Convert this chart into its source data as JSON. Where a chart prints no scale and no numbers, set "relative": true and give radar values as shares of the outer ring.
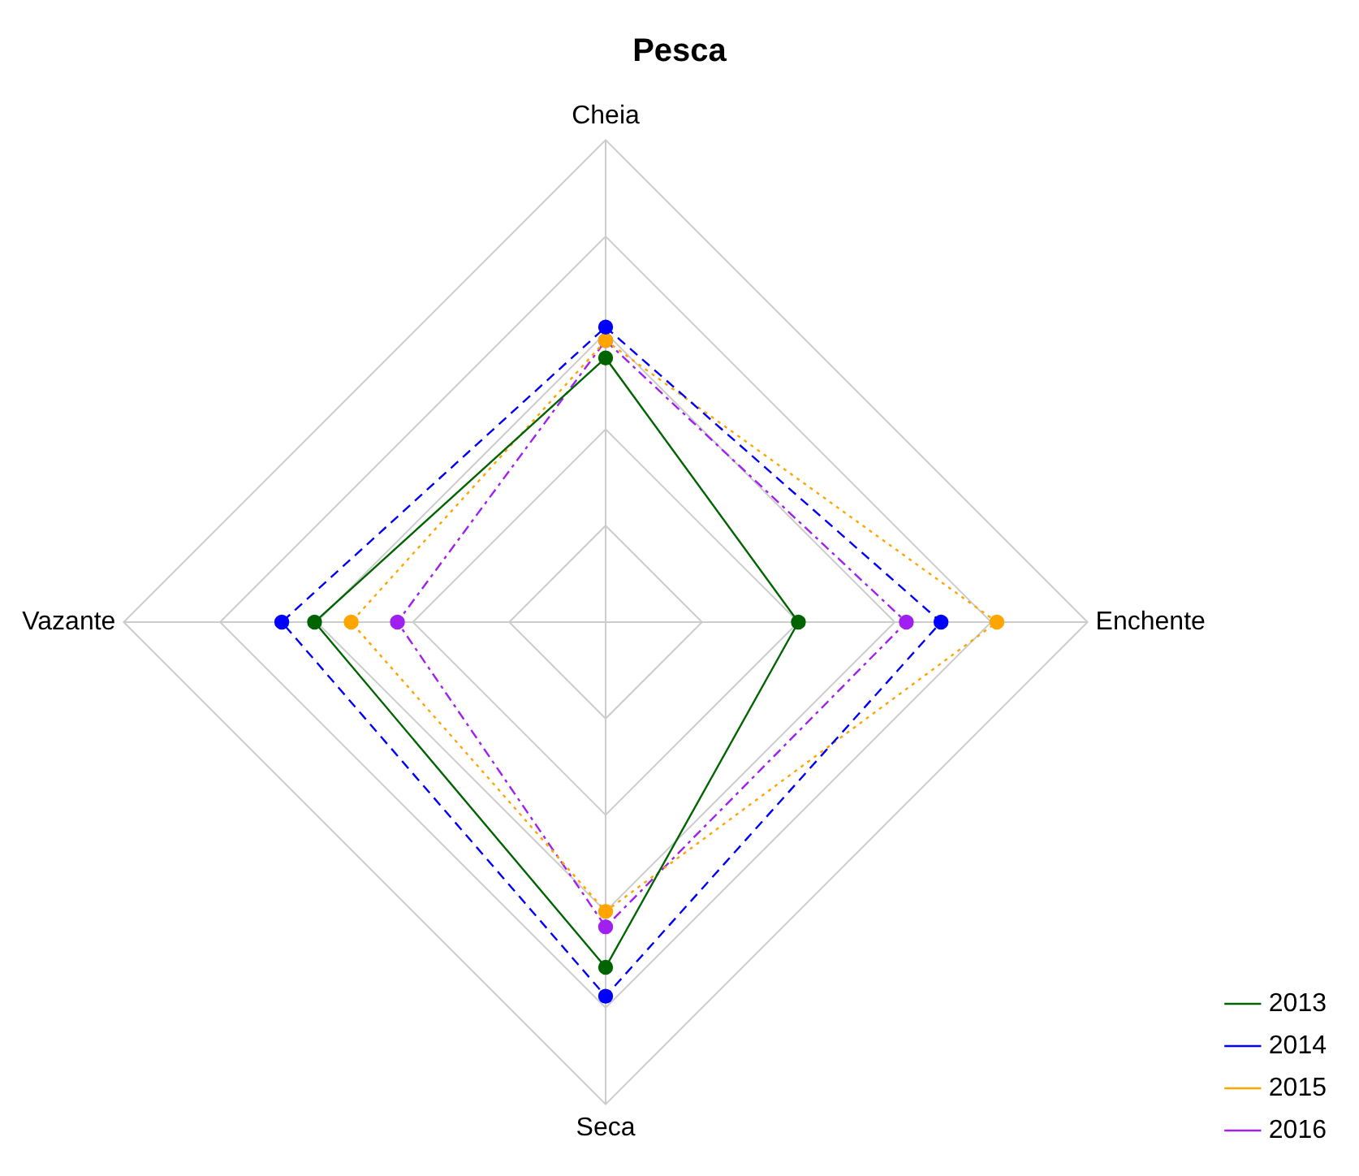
{
  "chart_data": {
    "type": "radar",
    "title": "Pesca",
    "categories": [
      "Cheia",
      "Enchente",
      "Seca",
      "Vazante"
    ],
    "relative": true,
    "grid": true,
    "legend": "bottom right",
    "marker": "circle",
    "series": [
      {
        "name": "2013",
        "color": "#006400",
        "line_style": "solid",
        "values": [
          0.548,
          0.4,
          0.716,
          0.604
        ]
      },
      {
        "name": "2014",
        "color": "#0000ff",
        "line_style": "dashed",
        "values": [
          0.612,
          0.696,
          0.776,
          0.672
        ]
      },
      {
        "name": "2015",
        "color": "#ffa500",
        "line_style": "dotted",
        "values": [
          0.584,
          0.812,
          0.6,
          0.528
        ]
      },
      {
        "name": "2016",
        "color": "#a020f0",
        "line_style": "dashdot",
        "values": [
          0.584,
          0.624,
          0.632,
          0.432
        ]
      }
    ]
  }
}
